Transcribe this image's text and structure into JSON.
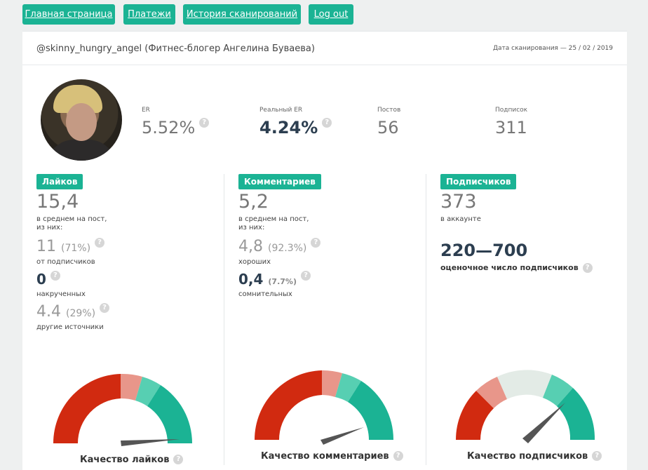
{
  "nav": [
    {
      "label": "Главная страница"
    },
    {
      "label": "Платежи"
    },
    {
      "label": "История сканирований"
    },
    {
      "label": "Log out"
    }
  ],
  "header": {
    "account": "@skinny_hungry_angel (Фитнес-блогер Ангелина Буваева)",
    "scan_date": "Дата сканирования — 25 / 02 / 2019"
  },
  "stats": {
    "er": {
      "label": "ER",
      "value": "5.52%"
    },
    "real_er": {
      "label": "Реальный ER",
      "value": "4.24%"
    },
    "posts": {
      "label": "Постов",
      "value": "56"
    },
    "following": {
      "label": "Подписок",
      "value": "311"
    }
  },
  "likes": {
    "badge": "Лайков",
    "avg": "15,4",
    "avg_desc1": "в среднем на пост,",
    "avg_desc2": "из них:",
    "subs_val": "11",
    "subs_pct": "(71%)",
    "subs_label": "от подписчиков",
    "fake_val": "0",
    "fake_label": "накрученных",
    "other_val": "4.4",
    "other_pct": "(29%)",
    "other_label": "другие источники",
    "gauge_title": "Качество лайков"
  },
  "comments": {
    "badge": "Комментариев",
    "avg": "5,2",
    "avg_desc1": "в среднем на пост,",
    "avg_desc2": "из них:",
    "good_val": "4,8",
    "good_pct": "(92.3%)",
    "good_label": "хороших",
    "doubt_val": "0,4",
    "doubt_pct": "(7.7%)",
    "doubt_label": "сомнительных",
    "gauge_title": "Качество комментариев"
  },
  "followers": {
    "badge": "Подписчиков",
    "count": "373",
    "count_desc": "в аккаунте",
    "range": "220—700",
    "range_label": "оценочное число подписчиков",
    "gauge_title": "Качество подписчиков"
  },
  "help_icon": "?",
  "colors": {
    "accent": "#1bb394",
    "red": "#d12a10",
    "salmon": "#e8968a",
    "mint": "#57cfb2",
    "teal": "#1bb394",
    "light": "#e3ebe6"
  }
}
